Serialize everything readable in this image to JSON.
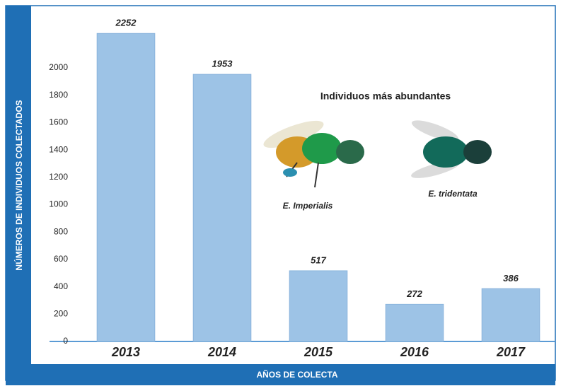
{
  "chart_data": {
    "type": "bar",
    "x_label": "AÑOS DE COLECTA",
    "y_label": "NÚMEROS DE INDIVIDUOS COLECTADOS",
    "annotations": [
      "Individuos más abundantes",
      "E. Imperialis",
      "E. tridentata"
    ],
    "categories": [
      "2013",
      "2014",
      "2015",
      "2016",
      "2017"
    ],
    "values": [
      2252,
      1953,
      517,
      272,
      386
    ],
    "color": "#9dc3e6",
    "ylim": [
      0,
      2300
    ],
    "yticks": [
      0,
      200,
      400,
      600,
      800,
      1000,
      1200,
      1400,
      1600,
      1800,
      2000
    ],
    "grid": false
  }
}
